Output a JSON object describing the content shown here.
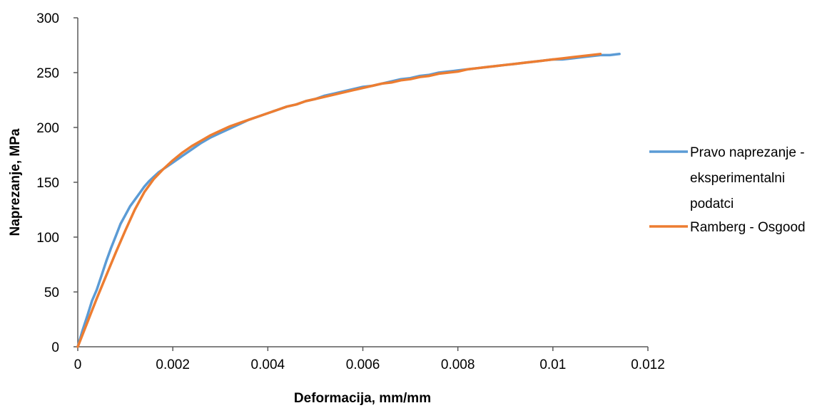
{
  "chart_data": {
    "type": "line",
    "title": "",
    "xlabel": "Deformacija, mm/mm",
    "ylabel": "Naprezanje, MPa",
    "xlim": [
      0,
      0.012
    ],
    "ylim": [
      0,
      300
    ],
    "x_ticks": [
      0,
      0.002,
      0.004,
      0.006,
      0.008,
      0.01,
      0.012
    ],
    "x_tick_labels": [
      "0",
      "0.002",
      "0.004",
      "0.006",
      "0.008",
      "0.01",
      "0.012"
    ],
    "y_ticks": [
      0,
      50,
      100,
      150,
      200,
      250,
      300
    ],
    "y_tick_labels": [
      "0",
      "50",
      "100",
      "150",
      "200",
      "250",
      "300"
    ],
    "grid": false,
    "legend_position": "right",
    "series": [
      {
        "name": "Pravo naprezanje - eksperimentalni podatci",
        "legend_lines": [
          "Pravo naprezanje -",
          "eksperimentalni",
          "podatci"
        ],
        "color": "#5B9BD5",
        "x": [
          0,
          0.0001,
          0.0002,
          0.0003,
          0.0004,
          0.0005,
          0.0006,
          0.0007,
          0.0008,
          0.0009,
          0.001,
          0.0011,
          0.0012,
          0.0013,
          0.0014,
          0.0015,
          0.0016,
          0.0017,
          0.0018,
          0.0019,
          0.002,
          0.0022,
          0.0024,
          0.0026,
          0.0028,
          0.003,
          0.0032,
          0.0034,
          0.0036,
          0.0038,
          0.004,
          0.0042,
          0.0044,
          0.0046,
          0.0048,
          0.005,
          0.0052,
          0.0054,
          0.0056,
          0.0058,
          0.006,
          0.0062,
          0.0064,
          0.0066,
          0.0068,
          0.007,
          0.0072,
          0.0074,
          0.0076,
          0.0078,
          0.008,
          0.0082,
          0.0084,
          0.0086,
          0.0088,
          0.009,
          0.0092,
          0.0094,
          0.0096,
          0.0098,
          0.01,
          0.0102,
          0.0104,
          0.0106,
          0.0108,
          0.011,
          0.0112,
          0.0114
        ],
        "y": [
          0,
          15,
          28,
          42,
          52,
          65,
          78,
          90,
          101,
          112,
          120,
          128,
          134,
          140,
          146,
          151,
          155,
          159,
          162,
          165,
          168,
          174,
          180,
          186,
          191,
          195,
          199,
          203,
          207,
          210,
          213,
          216,
          219,
          221,
          224,
          226,
          229,
          231,
          233,
          235,
          237,
          238,
          240,
          242,
          244,
          245,
          247,
          248,
          250,
          251,
          252,
          253,
          254,
          255,
          256,
          257,
          258,
          259,
          260,
          261,
          262,
          262,
          263,
          264,
          265,
          266,
          266,
          267
        ]
      },
      {
        "name": "Ramberg - Osgood",
        "legend_lines": [
          "Ramberg - Osgood"
        ],
        "color": "#ED7D31",
        "x": [
          0,
          0.0002,
          0.0004,
          0.0006,
          0.0008,
          0.001,
          0.0012,
          0.0014,
          0.0016,
          0.0018,
          0.002,
          0.0022,
          0.0024,
          0.0026,
          0.0028,
          0.003,
          0.0032,
          0.0034,
          0.0036,
          0.0038,
          0.004,
          0.0042,
          0.0044,
          0.0046,
          0.0048,
          0.005,
          0.0052,
          0.0054,
          0.0056,
          0.0058,
          0.006,
          0.0062,
          0.0064,
          0.0066,
          0.0068,
          0.007,
          0.0072,
          0.0074,
          0.0076,
          0.0078,
          0.008,
          0.0082,
          0.0084,
          0.0086,
          0.0088,
          0.009,
          0.0092,
          0.0094,
          0.0096,
          0.0098,
          0.01,
          0.0102,
          0.0104,
          0.0106,
          0.0108,
          0.011
        ],
        "y": [
          0,
          22,
          44,
          65,
          86,
          106,
          125,
          141,
          153,
          162,
          170,
          177,
          183,
          188,
          193,
          197,
          201,
          204,
          207,
          210,
          213,
          216,
          219,
          221,
          224,
          226,
          228,
          230,
          232,
          234,
          236,
          238,
          240,
          241,
          243,
          244,
          246,
          247,
          249,
          250,
          251,
          253,
          254,
          255,
          256,
          257,
          258,
          259,
          260,
          261,
          262,
          263,
          264,
          265,
          266,
          267
        ]
      }
    ]
  }
}
